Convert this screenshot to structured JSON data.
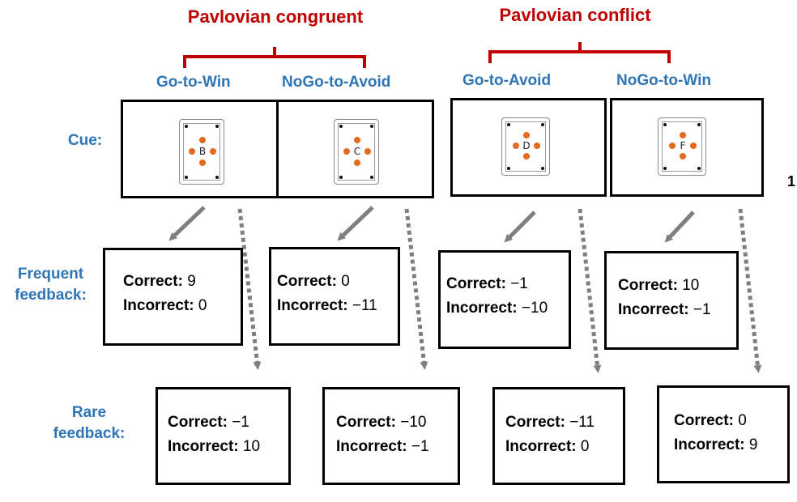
{
  "colors": {
    "group_title": "#c00000",
    "bracket": "#c00000",
    "condition_title": "#2f75b5",
    "row_label": "#2f75b5",
    "orange_dot": "#e56a1e",
    "arrow": "#7f7f7f"
  },
  "groups": [
    {
      "title": "Pavlovian congruent"
    },
    {
      "title": "Pavlovian conflict"
    }
  ],
  "row_labels": {
    "cue": "Cue:",
    "frequent": [
      "Frequent",
      "feedback:"
    ],
    "rare": [
      "Rare",
      "feedback:"
    ]
  },
  "side_glyph": "1",
  "conditions": [
    {
      "name": "Go-to-Win",
      "cue_letter": "B",
      "frequent": {
        "correct_label": "Correct:",
        "correct_value": "9",
        "incorrect_label": "Incorrect:",
        "incorrect_value": "0"
      },
      "rare": {
        "correct_label": "Correct:",
        "correct_value": "−1",
        "incorrect_label": "Incorrect:",
        "incorrect_value": "10"
      }
    },
    {
      "name": "NoGo-to-Avoid",
      "cue_letter": "C",
      "frequent": {
        "correct_label": "Correct:",
        "correct_value": "0",
        "incorrect_label": "Incorrect:",
        "incorrect_value": "−11"
      },
      "rare": {
        "correct_label": "Correct:",
        "correct_value": "−10",
        "incorrect_label": "Incorrect:",
        "incorrect_value": "−1"
      }
    },
    {
      "name": "Go-to-Avoid",
      "cue_letter": "D",
      "frequent": {
        "correct_label": "Correct:",
        "correct_value": "−1",
        "incorrect_label": "Incorrect:",
        "incorrect_value": "−10"
      },
      "rare": {
        "correct_label": "Correct:",
        "correct_value": "−11",
        "incorrect_label": "Incorrect:",
        "incorrect_value": "0"
      }
    },
    {
      "name": "NoGo-to-Win",
      "cue_letter": "F",
      "frequent": {
        "correct_label": "Correct:",
        "correct_value": "10",
        "incorrect_label": "Incorrect:",
        "incorrect_value": "−1"
      },
      "rare": {
        "correct_label": "Correct:",
        "correct_value": "0",
        "incorrect_label": "Incorrect:",
        "incorrect_value": "9"
      }
    }
  ]
}
